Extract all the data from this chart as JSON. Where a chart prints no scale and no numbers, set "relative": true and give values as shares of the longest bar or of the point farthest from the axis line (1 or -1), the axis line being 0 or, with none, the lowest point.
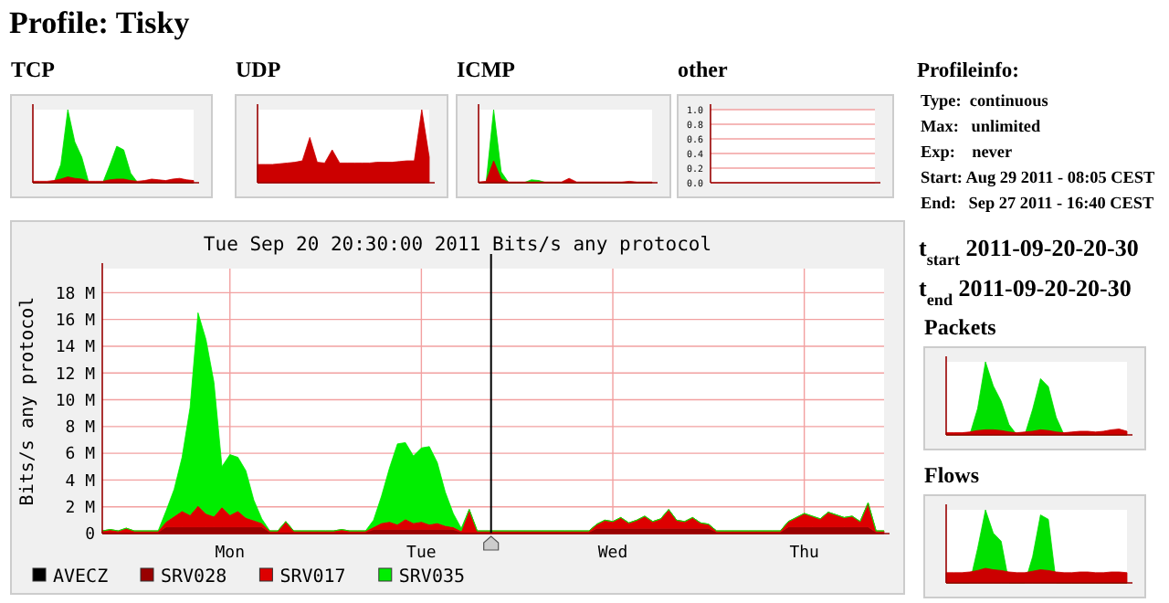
{
  "chart_data": [
    {
      "type": "other",
      "title": "Profile: Tisky"
    },
    {
      "type": "area",
      "title": "TCP",
      "relative": true,
      "tick_labels": false,
      "categories": [
        null,
        null,
        null,
        null,
        null,
        null,
        null,
        null,
        null,
        null,
        null,
        null,
        null,
        null,
        null,
        null,
        null,
        null,
        null,
        null,
        null,
        null,
        null,
        null
      ],
      "series": [
        {
          "color": "#00e000",
          "values": [
            0,
            0,
            0,
            0,
            0.25,
            1,
            0.56,
            0.35,
            0,
            0,
            0,
            0.24,
            0.5,
            0.45,
            0.13,
            0,
            0,
            0,
            0,
            0,
            0,
            0,
            0,
            0
          ]
        },
        {
          "color": "#cc0000",
          "values": [
            0.02,
            0.02,
            0.02,
            0.03,
            0.05,
            0.08,
            0.06,
            0.05,
            0.02,
            0.02,
            0.02,
            0.04,
            0.05,
            0.05,
            0.03,
            0.02,
            0.03,
            0.05,
            0.04,
            0.03,
            0.05,
            0.06,
            0.04,
            0.03
          ]
        }
      ]
    },
    {
      "type": "area",
      "title": "UDP",
      "relative": true,
      "tick_labels": false,
      "categories": [
        null,
        null,
        null,
        null,
        null,
        null,
        null,
        null,
        null,
        null,
        null,
        null,
        null,
        null,
        null,
        null,
        null,
        null,
        null,
        null,
        null,
        null,
        null,
        null
      ],
      "series": [
        {
          "color": "#cc0000",
          "values": [
            0.25,
            0.25,
            0.25,
            0.26,
            0.27,
            0.28,
            0.3,
            0.62,
            0.28,
            0.27,
            0.45,
            0.27,
            0.27,
            0.27,
            0.27,
            0.27,
            0.28,
            0.28,
            0.28,
            0.29,
            0.3,
            0.3,
            1,
            0.35
          ]
        }
      ]
    },
    {
      "type": "area",
      "title": "ICMP",
      "relative": true,
      "tick_labels": false,
      "categories": [
        null,
        null,
        null,
        null,
        null,
        null,
        null,
        null,
        null,
        null,
        null,
        null,
        null,
        null,
        null,
        null,
        null,
        null,
        null,
        null,
        null,
        null,
        null,
        null
      ],
      "series": [
        {
          "color": "#00e000",
          "values": [
            0,
            0,
            1,
            0.15,
            0,
            0,
            0,
            0.04,
            0.03,
            0,
            0,
            0,
            0,
            0,
            0,
            0,
            0,
            0,
            0,
            0,
            0,
            0,
            0,
            0
          ]
        },
        {
          "color": "#cc0000",
          "values": [
            0.01,
            0.02,
            0.3,
            0.05,
            0.01,
            0.01,
            0.01,
            0.01,
            0.01,
            0.01,
            0.01,
            0.01,
            0.06,
            0.01,
            0.01,
            0.01,
            0.01,
            0.01,
            0.01,
            0.01,
            0.02,
            0.01,
            0.01,
            0.01
          ]
        }
      ]
    },
    {
      "type": "area",
      "title": "other",
      "ylim": [
        0,
        1
      ],
      "yticks": [
        {
          "value": 0,
          "label": "0.0"
        },
        {
          "value": 0.2,
          "label": "0.2"
        },
        {
          "value": 0.4,
          "label": "0.4"
        },
        {
          "value": 0.6,
          "label": "0.6"
        },
        {
          "value": 0.8,
          "label": "0.8"
        },
        {
          "value": 1,
          "label": "1.0"
        }
      ],
      "tick_labels": "y",
      "grid": "y",
      "categories": [
        null,
        null,
        null,
        null,
        null,
        null,
        null,
        null,
        null,
        null,
        null,
        null,
        null,
        null,
        null,
        null,
        null,
        null,
        null,
        null,
        null,
        null,
        null,
        null
      ],
      "series": [
        {
          "color": "#cc0000",
          "values": [
            null,
            null,
            null,
            null,
            null,
            null,
            null,
            null,
            null,
            null,
            null,
            null,
            null,
            null,
            null,
            null,
            null,
            null,
            null,
            null,
            null,
            null,
            null,
            null
          ]
        }
      ]
    },
    {
      "type": "other",
      "title": "Profileinfo:",
      "annotations": [
        "Type:  continuous",
        "Max:   unlimited",
        "Exp:    never",
        "Start: Aug 29 2011 - 08:05 CEST",
        "End:   Sep 27 2011 - 16:40 CEST"
      ]
    },
    {
      "type": "area",
      "title": "Tue Sep 20 20:30:00 2011 Bits/s any protocol",
      "ylabel": "Bits/s any protocol",
      "stacked": true,
      "grid": true,
      "legend": "bottom",
      "categories": [
        null,
        null,
        null,
        null,
        null,
        null,
        null,
        null,
        null,
        null,
        null,
        null,
        null,
        null,
        null,
        null,
        "Mon",
        null,
        null,
        null,
        null,
        null,
        null,
        null,
        null,
        null,
        null,
        null,
        null,
        null,
        null,
        null,
        null,
        null,
        null,
        null,
        null,
        null,
        null,
        null,
        "Tue",
        null,
        null,
        null,
        null,
        null,
        null,
        null,
        null,
        null,
        null,
        null,
        null,
        null,
        null,
        null,
        null,
        null,
        null,
        null,
        null,
        null,
        null,
        null,
        "Wed",
        null,
        null,
        null,
        null,
        null,
        null,
        null,
        null,
        null,
        null,
        null,
        null,
        null,
        null,
        null,
        null,
        null,
        null,
        null,
        null,
        null,
        null,
        null,
        "Thu",
        null,
        null,
        null,
        null,
        null,
        null,
        null,
        null,
        null,
        null
      ],
      "ylim": [
        0,
        19.8
      ],
      "yticks": [
        {
          "value": 0,
          "label": "0"
        },
        {
          "value": 2,
          "label": "2 M"
        },
        {
          "value": 4,
          "label": "4 M"
        },
        {
          "value": 6,
          "label": "6 M"
        },
        {
          "value": 8,
          "label": "8 M"
        },
        {
          "value": 10,
          "label": "10 M"
        },
        {
          "value": 12,
          "label": "12 M"
        },
        {
          "value": 14,
          "label": "14 M"
        },
        {
          "value": 16,
          "label": "16 M"
        },
        {
          "value": 18,
          "label": "18 M"
        }
      ],
      "series": [
        {
          "name": "AVECZ",
          "color": "#000000",
          "values": [
            null,
            null,
            null,
            null,
            null,
            null,
            null,
            null,
            null,
            null,
            null,
            null,
            null,
            null,
            null,
            null,
            null,
            null,
            null,
            null,
            null,
            null,
            null,
            null,
            null,
            null,
            null,
            null,
            null,
            null,
            null,
            null,
            null,
            null,
            null,
            null,
            null,
            null,
            null,
            null,
            null,
            null,
            null,
            null,
            null,
            null,
            null,
            null,
            null,
            null,
            null,
            null,
            null,
            null,
            null,
            null,
            null,
            null,
            null,
            null,
            null,
            null,
            null,
            null,
            null,
            null,
            null,
            null,
            null,
            null,
            null,
            null,
            null,
            null,
            null,
            null,
            null,
            null,
            null,
            null,
            null,
            null,
            null,
            null,
            null,
            null,
            null,
            null,
            null,
            null,
            null,
            null,
            null,
            null,
            null,
            null,
            null,
            null,
            null
          ]
        },
        {
          "name": "SRV028",
          "color": "#990000",
          "values": [
            0.1,
            0.1,
            0.1,
            0.1,
            0.1,
            0.1,
            0.1,
            0.1,
            0.5,
            0.5,
            0.5,
            0.5,
            0.5,
            0.5,
            0.5,
            0.5,
            0.5,
            0.5,
            0.5,
            0.5,
            0.5,
            0.1,
            0.1,
            0.1,
            0.1,
            0.1,
            0.1,
            0.1,
            0.1,
            0.1,
            0.1,
            0.1,
            0.1,
            0.1,
            0.3,
            0.3,
            0.3,
            0.3,
            0.3,
            0.3,
            0.3,
            0.3,
            0.3,
            0.3,
            0.3,
            0.1,
            0.1,
            0.1,
            0.1,
            0.1,
            0.1,
            0.1,
            0.1,
            0.1,
            0.1,
            0.1,
            0.1,
            0.1,
            0.1,
            0.1,
            0.1,
            0.1,
            0.4,
            0.4,
            0.4,
            0.4,
            0.4,
            0.4,
            0.4,
            0.4,
            0.4,
            0.4,
            0.4,
            0.4,
            0.4,
            0.4,
            0.4,
            0.1,
            0.1,
            0.1,
            0.1,
            0.1,
            0.1,
            0.1,
            0.1,
            0.1,
            0.5,
            0.5,
            0.5,
            0.5,
            0.5,
            0.5,
            0.5,
            0.5,
            0.5,
            0.5,
            0.5,
            0.1,
            0.1
          ]
        },
        {
          "name": "SRV017",
          "color": "#dd0000",
          "values": [
            0.1,
            0.2,
            0.1,
            0.3,
            0.1,
            0.1,
            0.1,
            0.1,
            0.4,
            0.8,
            1.2,
            0.9,
            1.6,
            1.0,
            0.8,
            1.5,
            0.9,
            1.2,
            0.7,
            0.5,
            0.3,
            0.1,
            0.1,
            0.8,
            0.1,
            0.1,
            0.1,
            0.1,
            0.1,
            0.1,
            0.2,
            0.1,
            0.1,
            0.1,
            0.2,
            0.5,
            0.6,
            0.4,
            0.8,
            0.5,
            0.6,
            0.4,
            0.5,
            0.3,
            0.2,
            0.1,
            1.7,
            0.1,
            0.1,
            0.1,
            0.1,
            0.1,
            0.1,
            0.1,
            0.1,
            0.1,
            0.1,
            0.1,
            0.1,
            0.1,
            0.1,
            0.1,
            0.3,
            0.6,
            0.5,
            0.8,
            0.4,
            0.6,
            0.9,
            0.5,
            0.7,
            1.4,
            0.6,
            0.5,
            0.8,
            0.4,
            0.3,
            0.1,
            0.1,
            0.1,
            0.1,
            0.1,
            0.1,
            0.1,
            0.1,
            0.1,
            0.4,
            0.7,
            1.0,
            0.8,
            0.6,
            1.1,
            0.9,
            0.7,
            0.8,
            0.4,
            1.8,
            0.1,
            0.1
          ]
        },
        {
          "name": "SRV035",
          "color": "#00ee00",
          "values": [
            0,
            0,
            0,
            0,
            0,
            0,
            0,
            0,
            0.8,
            2,
            4,
            8,
            14.4,
            13,
            10,
            3,
            4.5,
            4,
            3.5,
            1.5,
            0.3,
            0,
            0,
            0,
            0,
            0,
            0,
            0,
            0,
            0,
            0,
            0,
            0,
            0,
            0.5,
            2,
            4,
            6,
            5.7,
            5,
            5.5,
            5.8,
            4.5,
            2.5,
            1,
            0.2,
            0,
            0,
            0,
            0,
            0,
            0,
            0,
            0,
            0,
            0,
            0,
            0,
            0,
            0,
            0,
            0,
            0,
            0,
            0,
            0,
            0,
            0,
            0,
            0,
            0,
            0,
            0,
            0,
            0,
            0,
            0,
            0,
            0,
            0,
            0,
            0,
            0,
            0,
            0,
            0,
            0,
            0,
            0,
            0,
            0,
            0,
            0,
            0,
            0,
            0,
            0,
            0,
            0
          ]
        }
      ]
    },
    {
      "type": "other",
      "annotations": [
        "t$_{start}$ 2011-09-20-20-30",
        "t$_{end}$ 2011-09-20-20-30"
      ]
    },
    {
      "type": "area",
      "title": "Packets",
      "relative": true,
      "tick_labels": false,
      "categories": [
        null,
        null,
        null,
        null,
        null,
        null,
        null,
        null,
        null,
        null,
        null,
        null,
        null,
        null,
        null,
        null,
        null,
        null,
        null,
        null,
        null,
        null,
        null,
        null
      ],
      "series": [
        {
          "color": "#00e000",
          "values": [
            0,
            0,
            0,
            0,
            0.36,
            1,
            0.67,
            0.46,
            0.14,
            0,
            0,
            0.35,
            0.77,
            0.66,
            0.24,
            0,
            0,
            0,
            0,
            0,
            0,
            0,
            0,
            0
          ]
        },
        {
          "color": "#cc0000",
          "values": [
            0.03,
            0.03,
            0.03,
            0.04,
            0.06,
            0.07,
            0.07,
            0.06,
            0.04,
            0.03,
            0.04,
            0.05,
            0.07,
            0.06,
            0.04,
            0.03,
            0.04,
            0.05,
            0.05,
            0.04,
            0.05,
            0.07,
            0.08,
            0.05
          ]
        }
      ]
    },
    {
      "type": "area",
      "title": "Flows",
      "relative": true,
      "tick_labels": false,
      "categories": [
        null,
        null,
        null,
        null,
        null,
        null,
        null,
        null,
        null,
        null,
        null,
        null,
        null,
        null,
        null,
        null,
        null,
        null,
        null,
        null,
        null,
        null,
        null,
        null
      ],
      "series": [
        {
          "color": "#00e000",
          "values": [
            0,
            0,
            0,
            0,
            0.47,
            1,
            0.68,
            0.57,
            0,
            0,
            0,
            0.36,
            0.93,
            0.87,
            0,
            0,
            0,
            0,
            0,
            0,
            0,
            0,
            0,
            0
          ]
        },
        {
          "color": "#cc0000",
          "values": [
            0.14,
            0.14,
            0.14,
            0.15,
            0.17,
            0.2,
            0.18,
            0.17,
            0.15,
            0.14,
            0.14,
            0.16,
            0.18,
            0.17,
            0.15,
            0.14,
            0.14,
            0.15,
            0.15,
            0.14,
            0.14,
            0.15,
            0.15,
            0.14
          ]
        }
      ]
    }
  ]
}
